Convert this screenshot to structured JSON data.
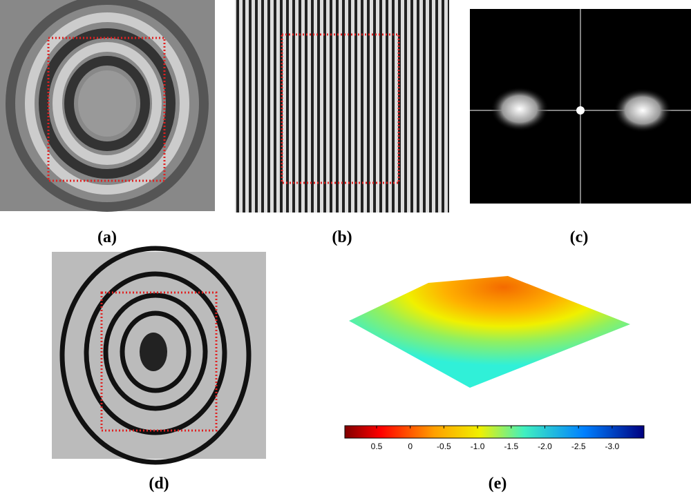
{
  "panels": {
    "labels": [
      "(a)",
      "(b)",
      "(c)",
      "(d)",
      "(e)"
    ]
  },
  "colorbar": {
    "ticks": [
      "0.5",
      "0",
      "-0.5",
      "-1.0",
      "-1.5",
      "-2.0",
      "-2.5",
      "-3.0"
    ]
  }
}
